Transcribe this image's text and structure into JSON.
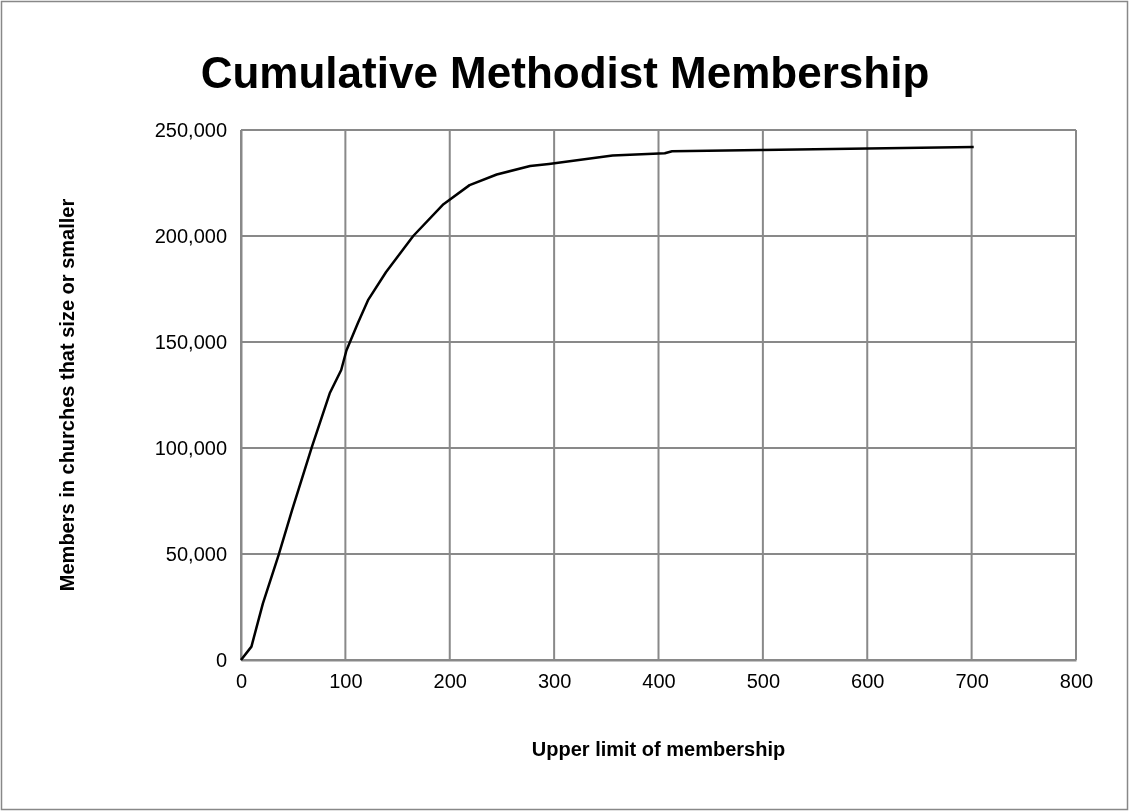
{
  "chart_data": {
    "type": "line",
    "title": "Cumulative Methodist Membership",
    "xlabel": "Upper limit of membership",
    "ylabel": "Members in churches that size or smaller",
    "xlim": [
      0,
      800
    ],
    "xticks": [
      0,
      100,
      200,
      300,
      400,
      500,
      600,
      700,
      800
    ],
    "ylim": [
      0,
      250000
    ],
    "yticks": [
      {
        "value": 0,
        "label": "0"
      },
      {
        "value": 50000,
        "label": "50,000"
      },
      {
        "value": 100000,
        "label": "100,000"
      },
      {
        "value": 150000,
        "label": "150,000"
      },
      {
        "value": 200000,
        "label": "200,000"
      },
      {
        "value": 250000,
        "label": "250,000"
      }
    ],
    "grid": true,
    "marker": "none",
    "line_style": "solid",
    "series": [
      {
        "color": "#000000",
        "x": [
          0,
          10,
          21,
          36,
          49,
          68,
          85,
          96,
          101,
          112,
          122,
          139,
          165,
          194,
          219,
          245,
          277,
          295,
          356,
          406,
          413,
          498,
          702
        ],
        "values": [
          0,
          6300,
          26700,
          49500,
          70800,
          100600,
          125800,
          136800,
          146000,
          159000,
          170000,
          183000,
          200000,
          215000,
          224000,
          229000,
          233000,
          234000,
          238000,
          239000,
          240000,
          240600,
          242000
        ]
      }
    ]
  }
}
